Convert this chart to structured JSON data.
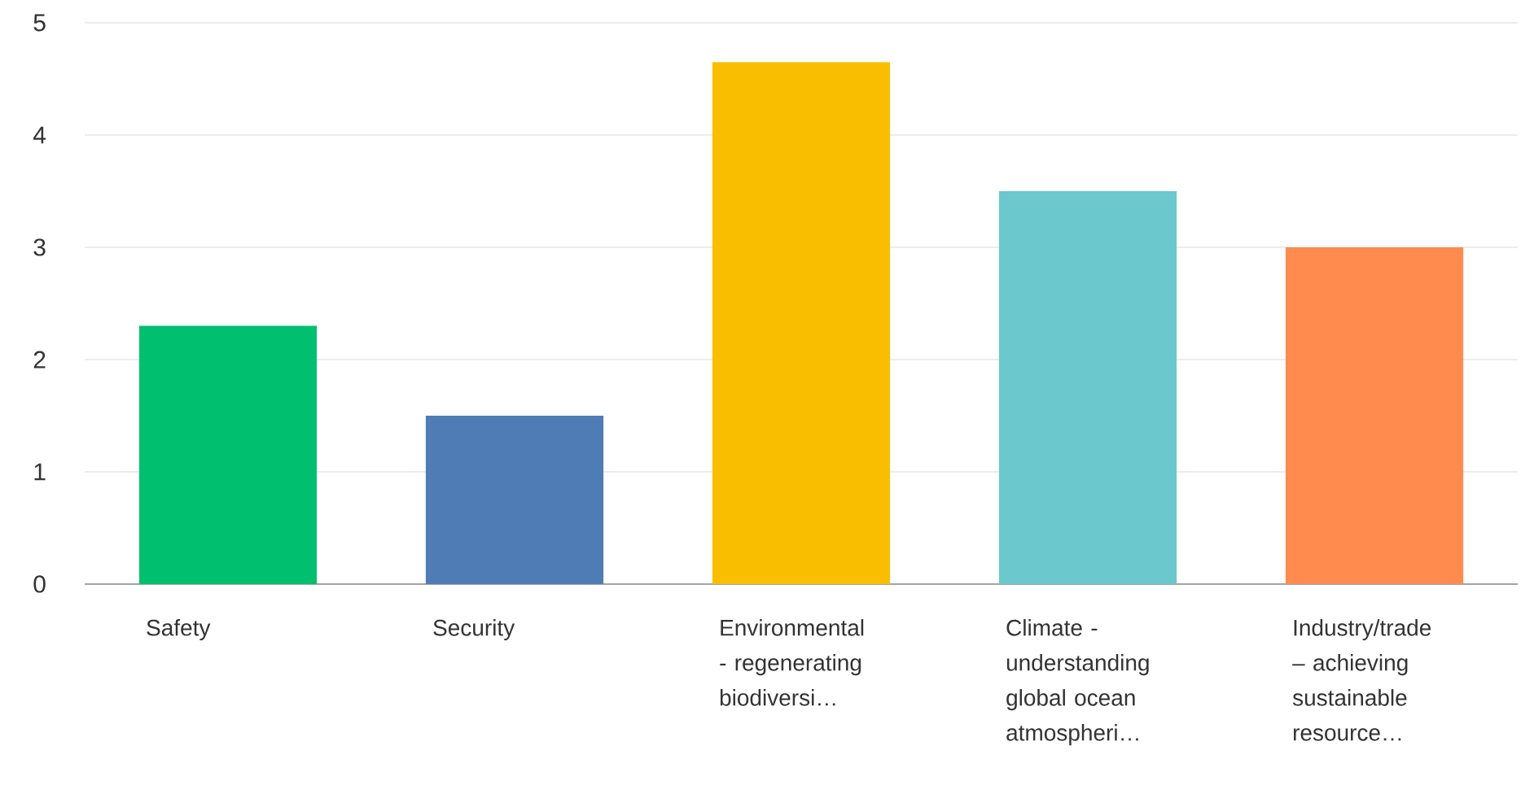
{
  "chart_data": {
    "type": "bar",
    "categories": [
      "Safety",
      "Security",
      "Environmental - regenerating biodiversi…",
      "Climate - understanding global ocean atmospheri…",
      "Industry/trade – achieving sustainable resource…"
    ],
    "values": [
      2.3,
      1.5,
      4.65,
      3.5,
      3.0
    ],
    "colors": [
      "#00bf6f",
      "#507cb6",
      "#f9be00",
      "#6bc8cd",
      "#ff8b4f"
    ],
    "ylim": [
      0,
      5
    ],
    "yticks": [
      0,
      1,
      2,
      3,
      4,
      5
    ],
    "grid": "y"
  }
}
